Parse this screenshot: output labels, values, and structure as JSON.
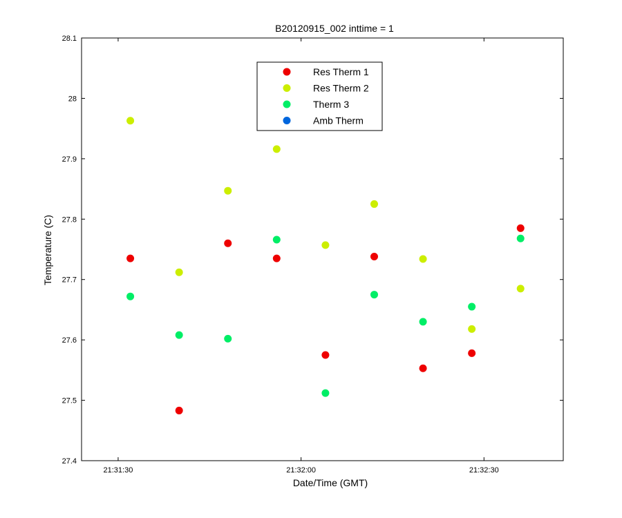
{
  "chart_data": {
    "type": "scatter",
    "title": "B20120915_002 inttime = 1",
    "xlabel": "Date/Time (GMT)",
    "ylabel": "Temperature (C)",
    "x_ticks": [
      "21:31:30",
      "21:32:00",
      "21:32:30"
    ],
    "x_tick_values": [
      "21:31:30",
      "21:32:00",
      "21:32:30"
    ],
    "xlim": [
      "21:31:24",
      "21:32:43"
    ],
    "ylim": [
      27.4,
      28.1
    ],
    "y_ticks": [
      "27.4",
      "27.5",
      "27.6",
      "27.7",
      "27.8",
      "27.9",
      "28",
      "28.1"
    ],
    "grid": false,
    "legend_position": "top-center",
    "x": [
      "21:31:32",
      "21:31:40",
      "21:31:48",
      "21:31:56",
      "21:32:04",
      "21:32:12",
      "21:32:20",
      "21:32:28",
      "21:32:36"
    ],
    "series": [
      {
        "name": "Res Therm 1",
        "color": "#ee0000",
        "values": [
          27.735,
          27.483,
          27.76,
          27.735,
          27.575,
          27.738,
          27.553,
          27.578,
          27.785
        ]
      },
      {
        "name": "Res Therm 2",
        "color": "#ccee00",
        "values": [
          27.963,
          27.712,
          27.847,
          27.916,
          27.757,
          27.825,
          27.734,
          27.618,
          27.685
        ]
      },
      {
        "name": "Therm 3",
        "color": "#00ee66",
        "values": [
          27.672,
          27.608,
          27.602,
          27.766,
          27.512,
          27.675,
          27.63,
          27.655,
          27.768
        ]
      },
      {
        "name": "Amb Therm",
        "color": "#0066dd",
        "values": []
      }
    ]
  }
}
